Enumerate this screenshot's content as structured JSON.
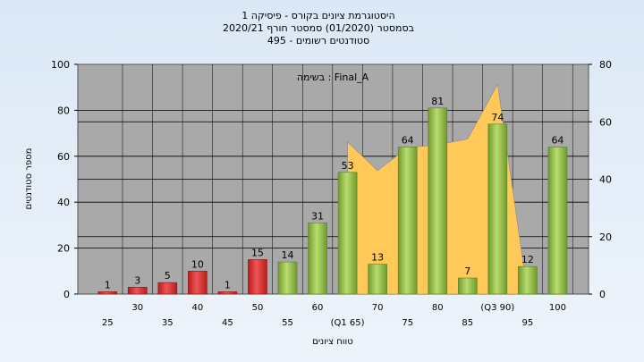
{
  "title_lines": [
    "היסטוגרמת ציונים בקורס - פיסיקה 1",
    "בסמסטר (01/2020) סמסטר חורף 2020/21",
    "סטודנטים רשומים - 495"
  ],
  "annotation": "בשימה : Final_A",
  "colors": {
    "plot_bg": "#a9a9a9",
    "grid": "#000000",
    "bar_red": "#e03030",
    "bar_green": "#8fc24a",
    "area": "#ffc95a",
    "page_bg": "#dbe8f6"
  },
  "chart_data": {
    "type": "bar",
    "xlabel": "טווח ציונים",
    "ylabel": "מספר סטודנטים",
    "ylim": [
      0,
      100
    ],
    "y2lim": [
      0,
      80
    ],
    "yticks": [
      0,
      20,
      40,
      60,
      80,
      100
    ],
    "y2ticks": [
      0,
      20,
      40,
      60,
      80
    ],
    "categories": [
      "25",
      "30",
      "35",
      "40",
      "45",
      "50",
      "55",
      "60",
      "65",
      "70",
      "75",
      "80",
      "85",
      "90",
      "95",
      "100"
    ],
    "tick_labels": [
      "25",
      "30",
      "35",
      "40",
      "45",
      "50",
      "55",
      "60",
      "(Q1 65)",
      "70",
      "75",
      "80",
      "85",
      "(Q3 90)",
      "95",
      "100"
    ],
    "values": [
      1,
      3,
      5,
      10,
      1,
      15,
      14,
      31,
      53,
      13,
      64,
      81,
      7,
      74,
      12,
      64
    ],
    "bar_colors": [
      "red",
      "red",
      "red",
      "red",
      "red",
      "red",
      "green",
      "green",
      "green",
      "green",
      "green",
      "green",
      "green",
      "green",
      "green",
      "green"
    ],
    "area_series": [
      53,
      43,
      51,
      52,
      54,
      73,
      0
    ],
    "grid": true
  }
}
